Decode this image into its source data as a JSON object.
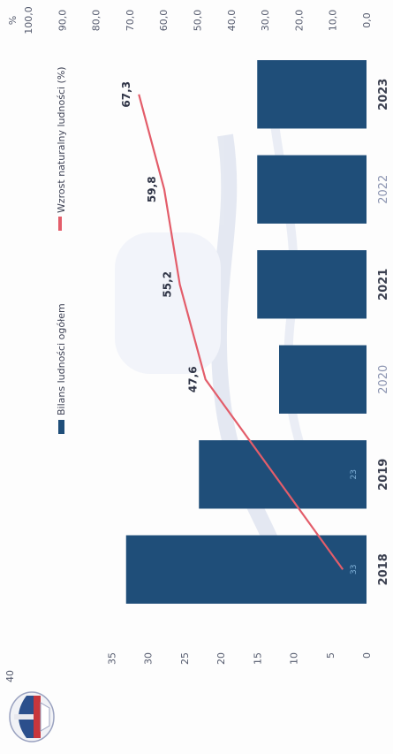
{
  "chart_data": {
    "type": "bar",
    "categories": [
      "2018",
      "2019",
      "2020",
      "2021",
      "2022",
      "2023"
    ],
    "series": [
      {
        "name": "Bilans ludności ogółem",
        "kind": "bar",
        "axis": "left",
        "values": [
          33,
          23,
          12,
          15,
          15,
          15
        ],
        "inner_labels": [
          "33",
          "23",
          "",
          "",
          "",
          ""
        ],
        "color": "#1f4e79"
      },
      {
        "name": "Wzrost naturalny ludności (%)",
        "kind": "line",
        "axis": "right",
        "values": [
          7.0,
          null,
          47.6,
          55.2,
          59.8,
          67.3
        ],
        "data_labels": [
          "",
          "",
          "47,6",
          "55,2",
          "59,8",
          "67,3"
        ],
        "color": "#e35d6a"
      }
    ],
    "left_axis": {
      "ylim": [
        0,
        40
      ],
      "ticks": [
        0,
        5,
        10,
        15,
        20,
        25,
        30,
        35
      ],
      "top_label": "40"
    },
    "right_axis": {
      "ylim": [
        0,
        100
      ],
      "unit_label": "%",
      "ticks": [
        0,
        10,
        20,
        30,
        40,
        50,
        60,
        70,
        80,
        90,
        100
      ],
      "tick_labels": [
        "0,0",
        "10,0",
        "20,0",
        "30,0",
        "40,0",
        "50,0",
        "60,0",
        "70,0",
        "80,0",
        "90,0",
        "100,0"
      ]
    },
    "legend_position": "top",
    "grid": false
  },
  "colors": {
    "bar": "#1f4e79",
    "line": "#e35d6a",
    "emblem_red": "#c8363c",
    "emblem_blue": "#2b4f8c"
  },
  "emblem": {
    "icon": "building-emblem-icon"
  }
}
